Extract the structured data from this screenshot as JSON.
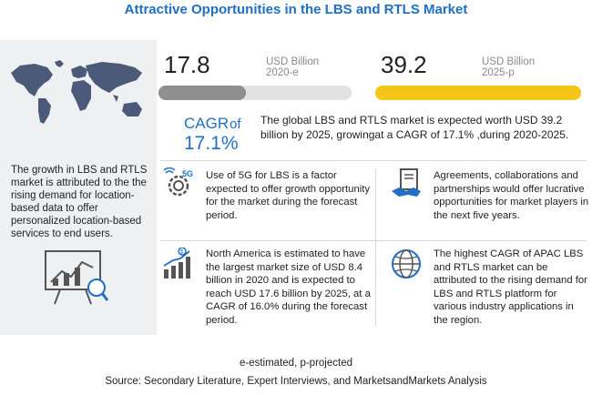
{
  "title": "Attractive Opportunities in the LBS and RTLS Market",
  "left_panel": {
    "text": "The growth in LBS and RTLS market is attributed to the the rising demand for location-based data to offer personalized location-based services to end users."
  },
  "stats": [
    {
      "value": "17.8",
      "unit": "USD Billion",
      "period": "2020-e",
      "bar_fraction": 0.454,
      "bar_color": "#8f8f8f"
    },
    {
      "value": "39.2",
      "unit": "USD Billion",
      "period": "2025-p",
      "bar_fraction": 1.0,
      "bar_color": "#f5c518"
    }
  ],
  "cagr": {
    "label": "CAGR",
    "of": "of",
    "value": "17.1%",
    "description": "The global LBS and RTLS market is expected worth USD 39.2 billion by 2025, growingat a CAGR of 17.1% ,during 2020-2025."
  },
  "features": [
    {
      "text": "Use of 5G for LBS is a factor expected to offer growth opportunity for the market during the forecast period.",
      "icon": "5g-gear-icon"
    },
    {
      "text": "Agreements, collaborations and partnerships would offer lucrative opportunities for market players in the next five years.",
      "icon": "handshake-document-icon"
    },
    {
      "text": "North America is estimated to have the largest market size of USD 8.4 billion in 2020 and is expected to reach USD 17.6 billion by 2025, at a CAGR of 16.0% during the forecast period.",
      "icon": "growth-bars-dollar-icon"
    },
    {
      "text": "The highest CAGR of APAC LBS and RTLS market can be attributed to the rising demand for LBS and RTLS platform for various industry applications in the region.",
      "icon": "globe-icon"
    }
  ],
  "footer": {
    "note": "e-estimated, p-projected",
    "source": "Source: Secondary Literature, Expert Interviews, and MarketsandMarkets Analysis"
  },
  "colors": {
    "accent": "#1f6fc5",
    "highlight": "#f5c518",
    "neutral_bar": "#8f8f8f"
  }
}
